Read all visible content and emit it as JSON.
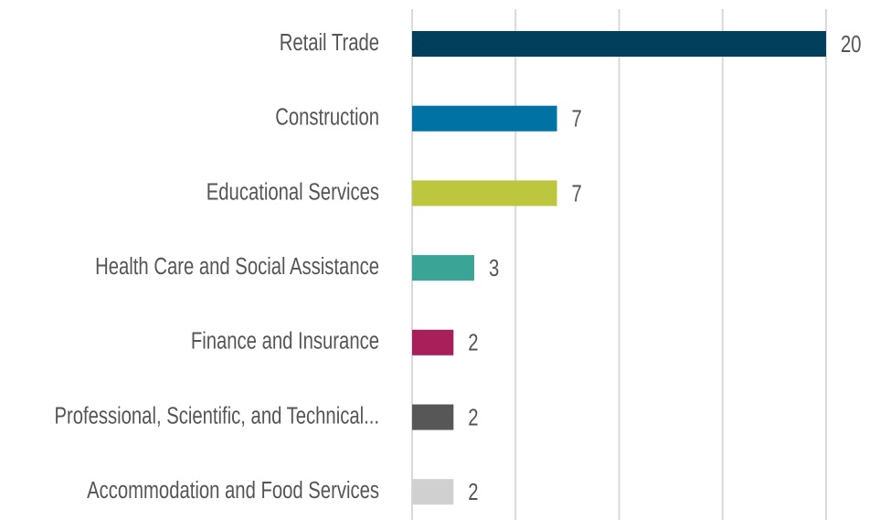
{
  "chart_data": {
    "type": "barh",
    "categories": [
      "Retail Trade",
      "Construction",
      "Educational Services",
      "Health Care and Social Assistance",
      "Finance and Insurance",
      "Professional, Scientific, and Technical...",
      "Accommodation and Food Services"
    ],
    "values": [
      20,
      7,
      7,
      3,
      2,
      2,
      2
    ],
    "colors": [
      "#003f5c",
      "#0073a4",
      "#bcc63f",
      "#3aa597",
      "#a81f5a",
      "#575757",
      "#d0d0d0"
    ],
    "xlim": [
      0,
      20
    ],
    "xticks": [
      0,
      5,
      10,
      15,
      20
    ],
    "grid": true
  }
}
